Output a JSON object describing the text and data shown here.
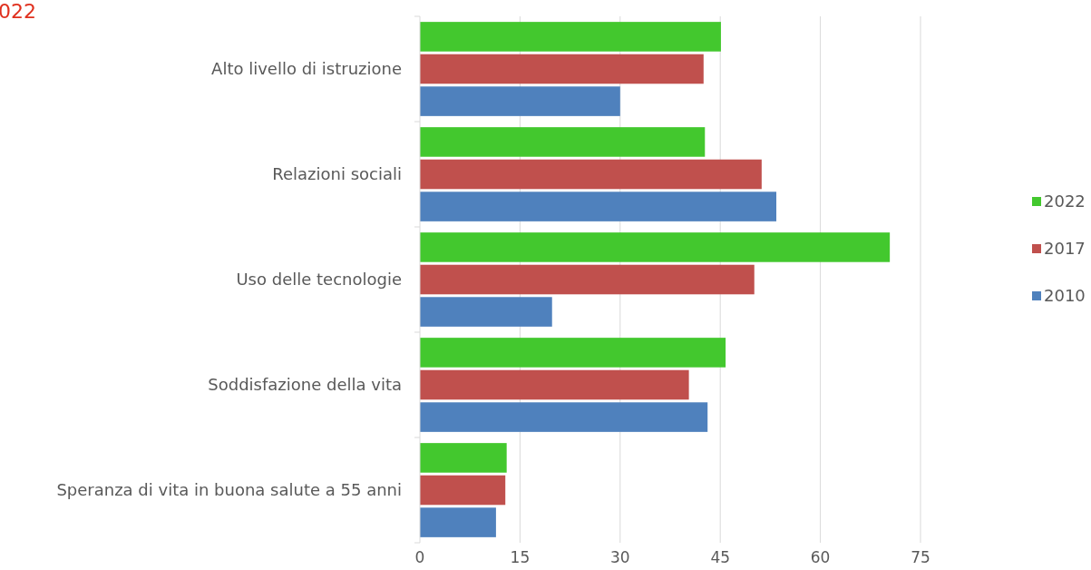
{
  "chart_data": {
    "type": "bar",
    "orientation": "horizontal",
    "title": "022",
    "categories": [
      "Alto livello di istruzione",
      "Relazioni sociali",
      "Uso delle tecnologie",
      "Soddisfazione della vita",
      "Speranza di vita in buona salute a 55 anni"
    ],
    "series": [
      {
        "name": "2022",
        "color": "#43c82e",
        "values": [
          45.1,
          42.7,
          70.4,
          45.8,
          13.0
        ]
      },
      {
        "name": "2017",
        "color": "#c0504d",
        "values": [
          42.5,
          51.2,
          50.1,
          40.3,
          12.8
        ]
      },
      {
        "name": "2010",
        "color": "#4f81bd",
        "values": [
          30.0,
          53.4,
          19.8,
          43.1,
          11.4
        ]
      }
    ],
    "xlim": [
      0,
      75
    ],
    "xticks": [
      0,
      15,
      30,
      45,
      60,
      75
    ],
    "grid": "x",
    "legend": "right"
  }
}
